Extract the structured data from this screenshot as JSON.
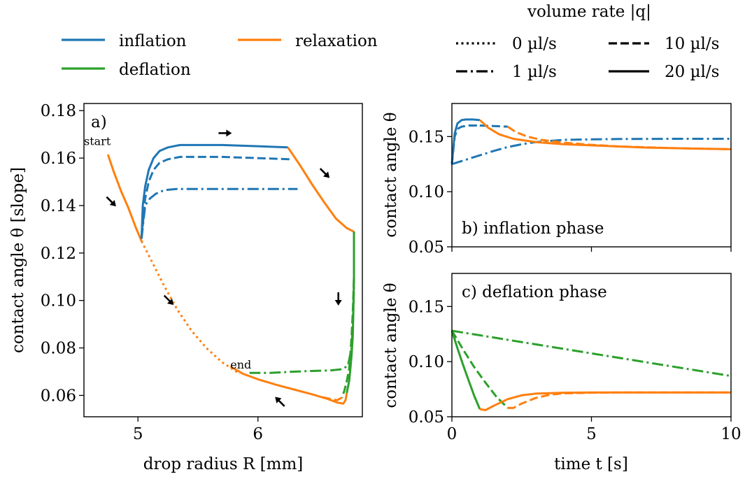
{
  "colors": {
    "inflation": "#1f77b4",
    "deflation": "#2ca02c",
    "relaxation": "#ff7f0e"
  },
  "legend": {
    "phases": [
      {
        "label": "inflation",
        "color": "#1f77b4"
      },
      {
        "label": "deflation",
        "color": "#2ca02c"
      },
      {
        "label": "relaxation",
        "color": "#ff7f0e"
      }
    ],
    "rate_title": "volume rate |q|",
    "rates": [
      {
        "label": "0 µl/s",
        "dash": "dotted"
      },
      {
        "label": "10 µl/s",
        "dash": "dashed"
      },
      {
        "label": "1 µl/s",
        "dash": "dashdot"
      },
      {
        "label": "20 µl/s",
        "dash": "solid"
      }
    ]
  },
  "chart_data": [
    {
      "type": "line",
      "panel_label": "a)",
      "xlabel": "drop radius R [mm]",
      "ylabel": "contact angle θ [slope]",
      "xlim": [
        4.55,
        6.87
      ],
      "ylim": [
        0.051,
        0.183
      ],
      "xticks": [
        5,
        6
      ],
      "yticks": [
        0.06,
        0.08,
        0.1,
        0.12,
        0.14,
        0.16,
        0.18
      ],
      "ytick_labels": [
        "0.06",
        "0.08",
        "0.10",
        "0.12",
        "0.14",
        "0.16",
        "0.18"
      ],
      "annotations": [
        {
          "text": "start",
          "x": 4.55,
          "y": 0.1655
        },
        {
          "text": "end",
          "x": 5.77,
          "y": 0.0714
        }
      ],
      "arrows": [
        {
          "x": 5.73,
          "y": 0.1705,
          "dir": "right"
        },
        {
          "x": 6.56,
          "y": 0.1535,
          "dir": "down-right"
        },
        {
          "x": 6.67,
          "y": 0.1005,
          "dir": "down"
        },
        {
          "x": 4.78,
          "y": 0.1415,
          "dir": "down-right"
        },
        {
          "x": 5.26,
          "y": 0.1,
          "dir": "down-right"
        },
        {
          "x": 6.18,
          "y": 0.0575,
          "dir": "up-left"
        }
      ],
      "series": [
        {
          "name": "relaxation",
          "phase": "relaxation",
          "dash": "solid",
          "x": [
            4.75,
            4.8,
            4.86,
            4.92,
            4.98,
            5.03
          ],
          "y": [
            0.1615,
            0.154,
            0.146,
            0.139,
            0.131,
            0.125
          ]
        },
        {
          "phase": "relaxation",
          "dash": "dotted",
          "x": [
            5.03,
            5.12,
            5.22,
            5.33,
            5.45,
            5.57,
            5.7,
            5.85
          ],
          "y": [
            0.125,
            0.116,
            0.106,
            0.096,
            0.087,
            0.08,
            0.074,
            0.069
          ]
        },
        {
          "phase": "inflation",
          "dash": "solid",
          "x": [
            5.03,
            5.04,
            5.06,
            5.09,
            5.13,
            5.18,
            5.25,
            5.35,
            5.5,
            5.7,
            6.0,
            6.25
          ],
          "y": [
            0.126,
            0.14,
            0.148,
            0.155,
            0.16,
            0.163,
            0.1645,
            0.1655,
            0.1655,
            0.1655,
            0.165,
            0.1645
          ]
        },
        {
          "phase": "inflation",
          "dash": "dashed",
          "x": [
            5.03,
            5.06,
            5.09,
            5.13,
            5.18,
            5.25,
            5.35,
            5.5,
            5.7,
            6.0,
            6.27
          ],
          "y": [
            0.126,
            0.143,
            0.15,
            0.155,
            0.158,
            0.1595,
            0.1605,
            0.1605,
            0.1605,
            0.16,
            0.1595
          ]
        },
        {
          "phase": "inflation",
          "dash": "dashdot",
          "x": [
            5.03,
            5.06,
            5.1,
            5.15,
            5.22,
            5.32,
            5.45,
            5.7,
            6.0,
            6.33
          ],
          "y": [
            0.126,
            0.14,
            0.143,
            0.145,
            0.1465,
            0.147,
            0.147,
            0.147,
            0.147,
            0.147
          ]
        },
        {
          "phase": "relaxation",
          "dash": "solid",
          "x": [
            6.25,
            6.35,
            6.45,
            6.55,
            6.65,
            6.74,
            6.8
          ],
          "y": [
            0.1645,
            0.157,
            0.149,
            0.1415,
            0.1345,
            0.1305,
            0.129
          ]
        },
        {
          "phase": "deflation",
          "dash": "solid",
          "x": [
            6.8,
            6.8,
            6.795,
            6.79,
            6.78,
            6.77,
            6.76,
            6.74
          ],
          "y": [
            0.129,
            0.11,
            0.095,
            0.085,
            0.077,
            0.071,
            0.066,
            0.061
          ]
        },
        {
          "phase": "deflation",
          "dash": "dashed",
          "x": [
            6.8,
            6.8,
            6.79,
            6.78,
            6.77,
            6.76,
            6.74,
            6.72,
            6.7
          ],
          "y": [
            0.129,
            0.11,
            0.095,
            0.085,
            0.077,
            0.071,
            0.066,
            0.062,
            0.059
          ]
        },
        {
          "phase": "deflation",
          "dash": "dashdot",
          "x": [
            6.8,
            6.8,
            6.79,
            6.78,
            6.75,
            6.7,
            6.6,
            6.45,
            6.3,
            6.1,
            5.93
          ],
          "y": [
            0.129,
            0.105,
            0.09,
            0.08,
            0.0725,
            0.071,
            0.0705,
            0.0703,
            0.07,
            0.0695,
            0.0695
          ]
        },
        {
          "phase": "relaxation",
          "dash": "solid",
          "x": [
            6.74,
            6.73,
            6.71,
            6.66,
            6.58,
            6.45,
            6.3,
            6.15,
            6.0,
            5.88,
            5.8,
            5.77
          ],
          "y": [
            0.061,
            0.058,
            0.0565,
            0.057,
            0.0585,
            0.0605,
            0.0625,
            0.0645,
            0.0668,
            0.069,
            0.0713,
            0.0722
          ]
        },
        {
          "phase": "relaxation",
          "dash": "dashed",
          "x": [
            6.7,
            6.66,
            6.6,
            6.52
          ],
          "y": [
            0.059,
            0.058,
            0.0585,
            0.0595
          ]
        }
      ]
    },
    {
      "type": "line",
      "panel_label": "b) inflation phase",
      "xlabel": "",
      "ylabel": "contact angle θ",
      "xlim": [
        0,
        10
      ],
      "ylim": [
        0.05,
        0.18
      ],
      "xticks": [
        0,
        5,
        10
      ],
      "yticks": [
        0.05,
        0.1,
        0.15
      ],
      "ytick_labels": [
        "0.05",
        "0.10",
        "0.15"
      ],
      "series": [
        {
          "phase": "inflation",
          "dash": "dashdot",
          "x": [
            0,
            0.5,
            1.0,
            1.5,
            2.0,
            2.5,
            3.0,
            4.0,
            5.0,
            6.0,
            8.0,
            10.0
          ],
          "y": [
            0.125,
            0.129,
            0.133,
            0.137,
            0.1405,
            0.143,
            0.145,
            0.147,
            0.1475,
            0.1478,
            0.148,
            0.148
          ]
        },
        {
          "phase": "inflation",
          "dash": "dashed",
          "x": [
            0,
            0.1,
            0.2,
            0.35,
            0.6,
            1.0
          ],
          "y": [
            0.125,
            0.15,
            0.157,
            0.159,
            0.16,
            0.16
          ]
        },
        {
          "phase": "inflation",
          "dash": "dashed",
          "x": [
            1.0,
            1.5,
            2.0
          ],
          "y": [
            0.16,
            0.1595,
            0.159
          ]
        },
        {
          "phase": "inflation",
          "dash": "solid",
          "x": [
            0,
            0.1,
            0.2,
            0.35,
            0.5,
            0.75,
            1.0
          ],
          "y": [
            0.125,
            0.153,
            0.162,
            0.165,
            0.1655,
            0.1655,
            0.165
          ]
        },
        {
          "phase": "relaxation",
          "dash": "solid",
          "x": [
            1.0,
            1.3,
            1.7,
            2.2,
            3.0,
            4.0,
            5.0,
            6.0,
            7.0,
            8.0,
            9.0,
            10.0
          ],
          "y": [
            0.165,
            0.158,
            0.152,
            0.148,
            0.145,
            0.143,
            0.142,
            0.141,
            0.14,
            0.1395,
            0.139,
            0.1385
          ]
        },
        {
          "phase": "relaxation",
          "dash": "dashed",
          "x": [
            2.0,
            2.3,
            2.7,
            3.2,
            4.0,
            5.0,
            6.0,
            8.0,
            10.0
          ],
          "y": [
            0.159,
            0.154,
            0.15,
            0.147,
            0.1445,
            0.1425,
            0.141,
            0.1395,
            0.1385
          ]
        }
      ]
    },
    {
      "type": "line",
      "panel_label": "c) deflation phase",
      "xlabel": "time t [s]",
      "ylabel": "contact angle θ",
      "xlim": [
        0,
        10
      ],
      "ylim": [
        0.05,
        0.18
      ],
      "xticks": [
        0,
        5,
        10
      ],
      "yticks": [
        0.05,
        0.1,
        0.15
      ],
      "ytick_labels": [
        "0.05",
        "0.10",
        "0.15"
      ],
      "series": [
        {
          "phase": "deflation",
          "dash": "dashdot",
          "x": [
            0,
            10
          ],
          "y": [
            0.128,
            0.087
          ]
        },
        {
          "phase": "deflation",
          "dash": "dashed",
          "x": [
            0,
            0.4,
            0.8,
            1.2,
            1.6,
            2.0
          ],
          "y": [
            0.128,
            0.111,
            0.095,
            0.081,
            0.068,
            0.058
          ]
        },
        {
          "phase": "deflation",
          "dash": "solid",
          "x": [
            0,
            0.2,
            0.4,
            0.6,
            0.8,
            1.0
          ],
          "y": [
            0.128,
            0.112,
            0.097,
            0.083,
            0.069,
            0.057
          ]
        },
        {
          "phase": "relaxation",
          "dash": "solid",
          "x": [
            1.0,
            1.2,
            1.5,
            2.0,
            2.5,
            3.0,
            4.0,
            5.0,
            6.0,
            8.0,
            10.0
          ],
          "y": [
            0.057,
            0.056,
            0.06,
            0.066,
            0.0695,
            0.071,
            0.0718,
            0.072,
            0.072,
            0.072,
            0.072
          ]
        },
        {
          "phase": "relaxation",
          "dash": "dashed",
          "x": [
            2.0,
            2.2,
            2.5,
            3.0,
            3.5,
            4.0,
            5.0,
            6.0,
            8.0,
            10.0
          ],
          "y": [
            0.058,
            0.058,
            0.062,
            0.067,
            0.07,
            0.0712,
            0.0718,
            0.072,
            0.072,
            0.072
          ]
        }
      ]
    }
  ]
}
